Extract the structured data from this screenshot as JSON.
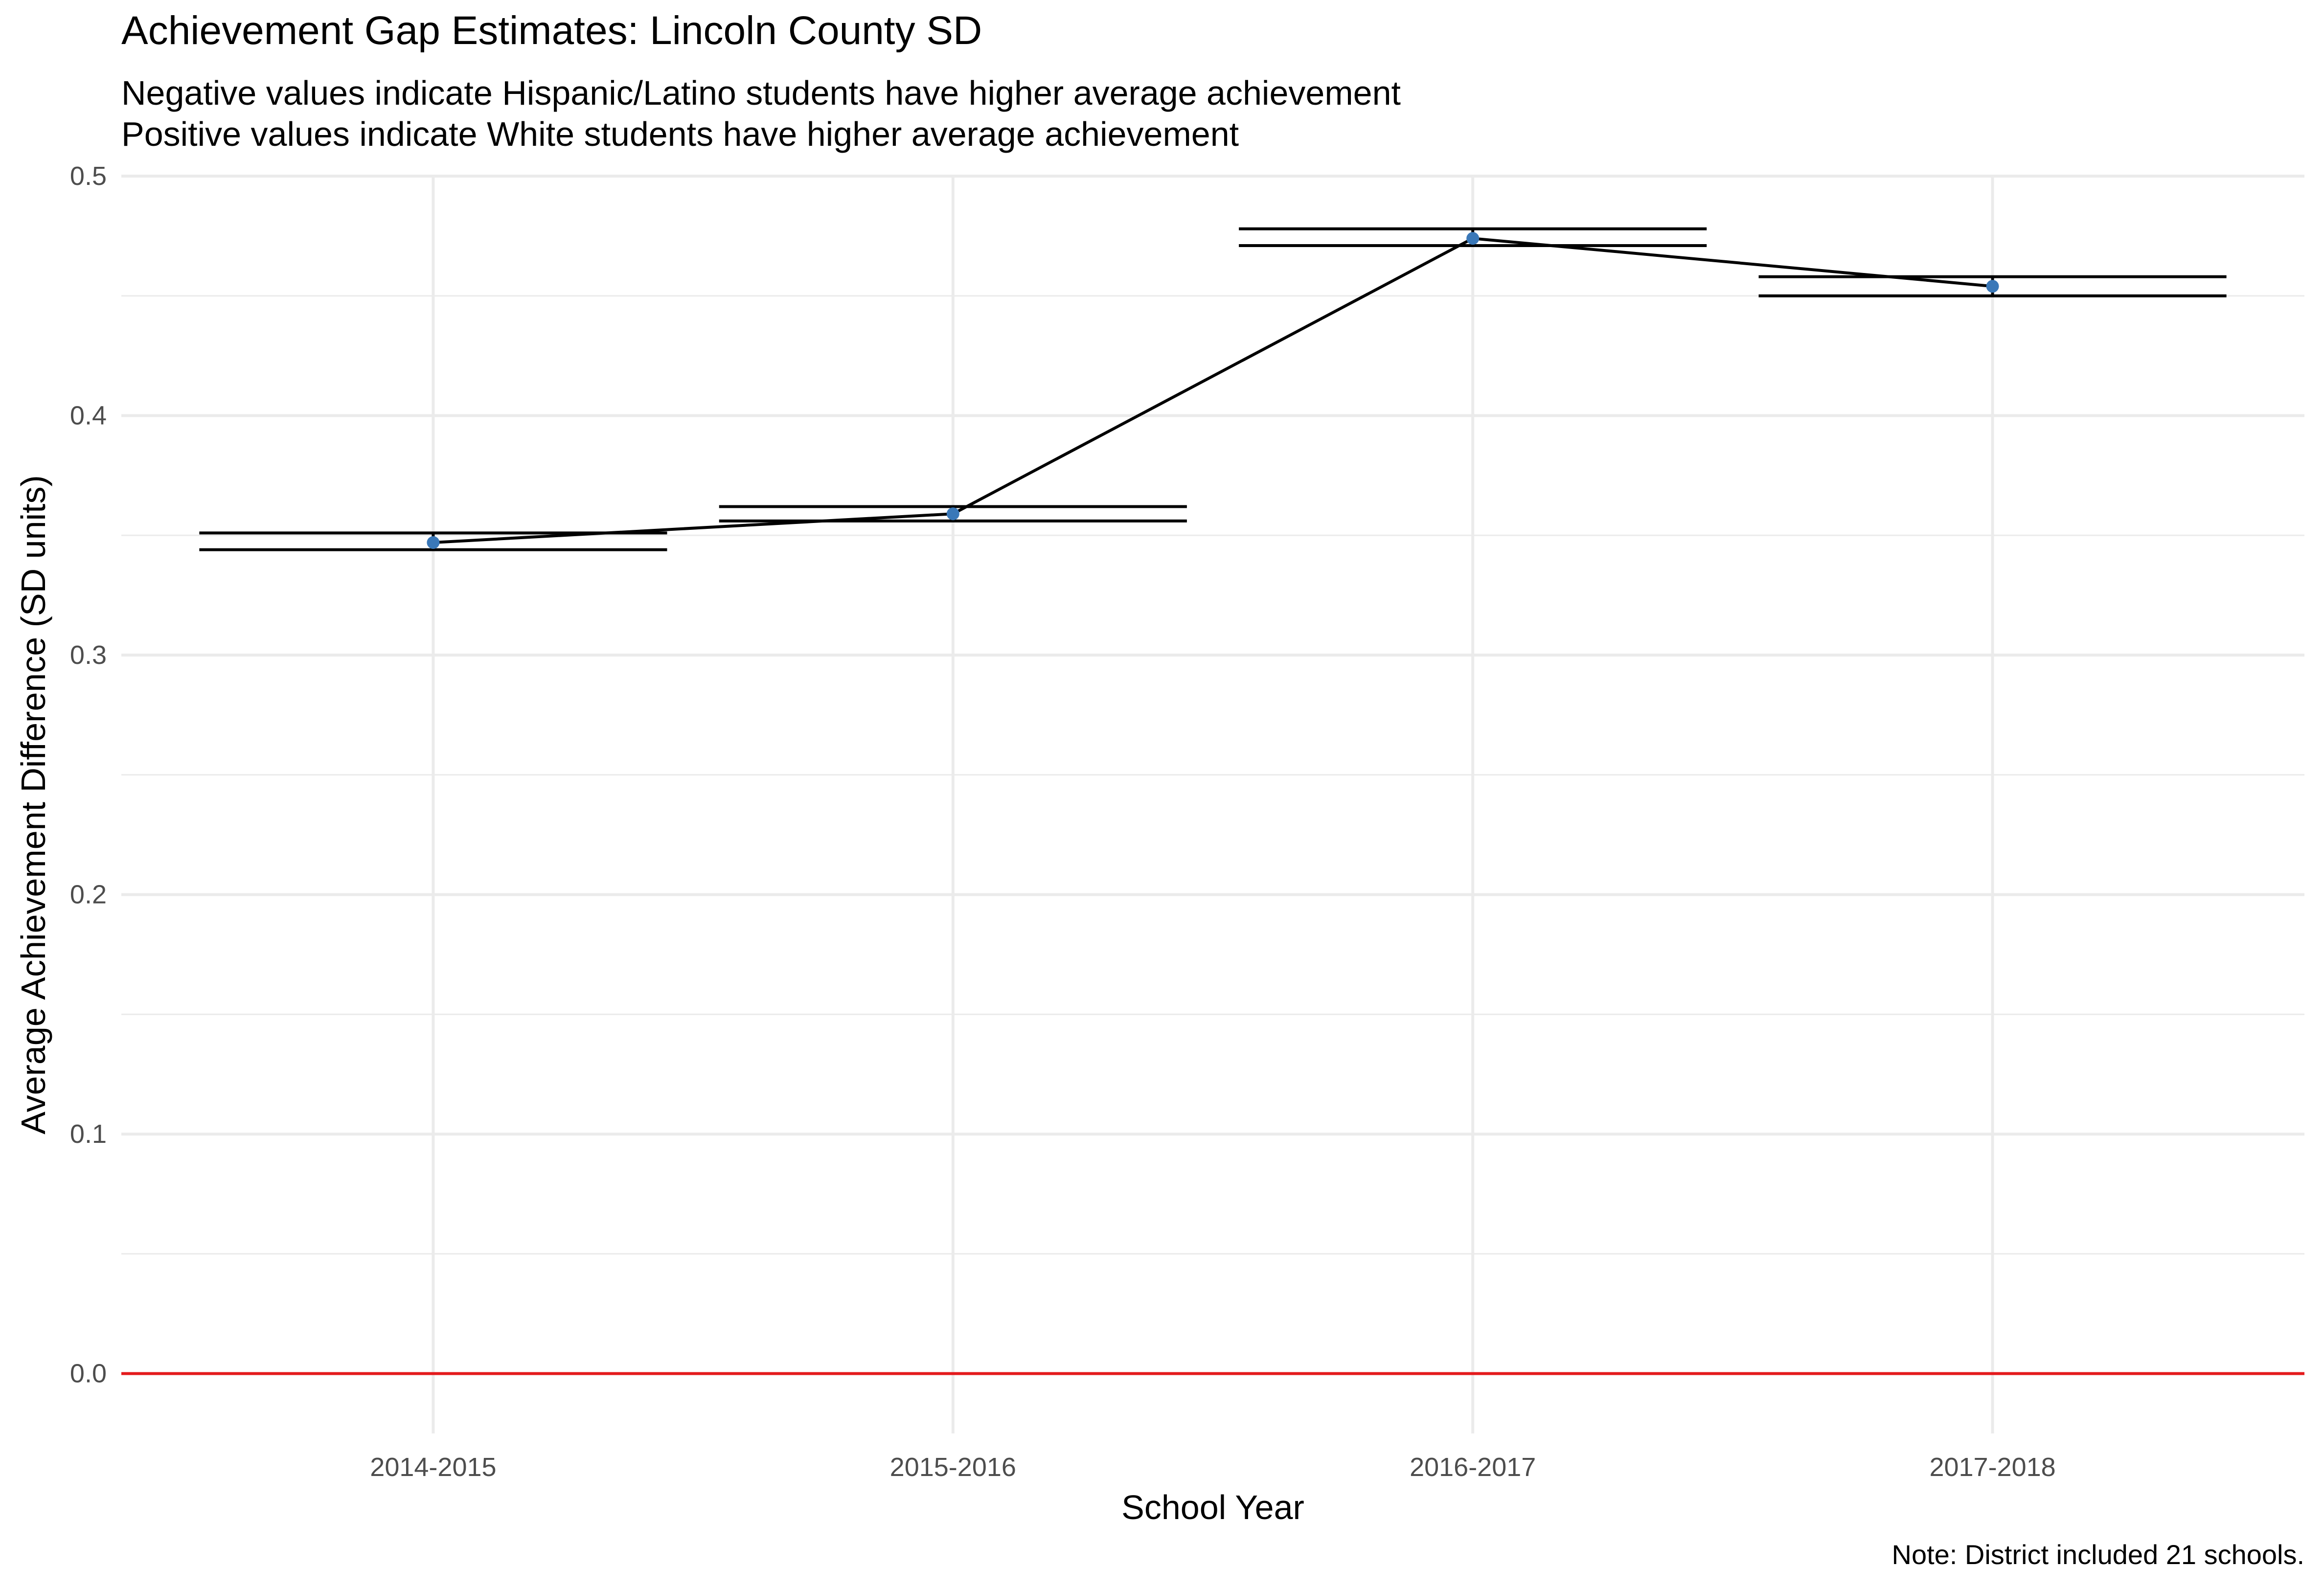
{
  "chart_data": {
    "type": "line",
    "title": "Achievement Gap Estimates: Lincoln County SD",
    "subtitle": [
      "Negative values indicate Hispanic/Latino students have higher average achievement",
      "Positive values indicate White students have higher average achievement"
    ],
    "caption": "Note: District included 21 schools.",
    "xlabel": "School Year",
    "ylabel": "Average Achievement Difference (SD units)",
    "categories": [
      "2014-2015",
      "2015-2016",
      "2016-2017",
      "2017-2018"
    ],
    "series": [
      {
        "values": [
          0.347,
          0.359,
          0.474,
          0.454
        ],
        "lower": [
          0.344,
          0.356,
          0.471,
          0.45
        ],
        "upper": [
          0.351,
          0.362,
          0.478,
          0.458
        ]
      }
    ],
    "reference_line": {
      "y": 0,
      "color": "#e41a1c"
    },
    "ylim": [
      -0.025,
      0.5
    ],
    "yticks": [
      0.0,
      0.1,
      0.2,
      0.3,
      0.4,
      0.5
    ],
    "ytick_labels": [
      "0.0",
      "0.1",
      "0.2",
      "0.3",
      "0.4",
      "0.5"
    ],
    "grid": true,
    "point_color": "#3a78b8",
    "line_color": "#000000",
    "grid_color": "#ebebeb"
  }
}
